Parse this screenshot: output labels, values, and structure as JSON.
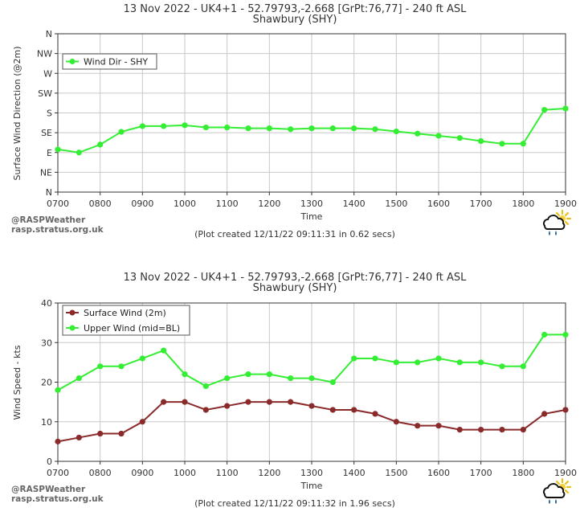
{
  "branding": {
    "line1": "@RASPWeather",
    "line2": "rasp.stratus.org.uk",
    "logo_icon": "cloud-sun-rain-icon"
  },
  "chart_data": [
    {
      "type": "line",
      "title": "13 Nov 2022 - UK4+1 - 52.79793,-2.668 [GrPt:76,77]  - 240 ft ASL",
      "subtitle": "Shawbury (SHY)",
      "xlabel": "Time",
      "ylabel": "Surface Wind Direction (@2m)",
      "footer": "(Plot created 12/11/22 09:11:31 in 0.62 secs)",
      "x_ticks": [
        "0700",
        "0800",
        "0900",
        "1000",
        "1100",
        "1200",
        "1300",
        "1400",
        "1500",
        "1600",
        "1700",
        "1800",
        "1900"
      ],
      "x": [
        700,
        750,
        800,
        850,
        900,
        950,
        1000,
        1050,
        1100,
        1150,
        1200,
        1250,
        1300,
        1350,
        1400,
        1450,
        1500,
        1550,
        1600,
        1650,
        1700,
        1750,
        1800,
        1850,
        1900
      ],
      "xlim": [
        700,
        1900
      ],
      "y_tick_labels": [
        "N",
        "NE",
        "E",
        "SE",
        "S",
        "SW",
        "W",
        "NW",
        "N"
      ],
      "y_tick_values": [
        0,
        45,
        90,
        135,
        180,
        225,
        270,
        315,
        360
      ],
      "ylim": [
        0,
        360
      ],
      "grid": true,
      "legend_position": "top-left",
      "series": [
        {
          "name": "Wind Dir - SHY",
          "color": "#33ee33",
          "values": [
            97,
            90,
            108,
            137,
            150,
            150,
            152,
            147,
            147,
            145,
            145,
            143,
            145,
            145,
            145,
            143,
            138,
            133,
            128,
            123,
            116,
            110,
            110,
            187,
            190
          ]
        }
      ]
    },
    {
      "type": "line",
      "title": "13 Nov 2022 - UK4+1 - 52.79793,-2.668 [GrPt:76,77]  - 240 ft ASL",
      "subtitle": "Shawbury (SHY)",
      "xlabel": "Time",
      "ylabel": "Wind Speed - kts",
      "footer": "(Plot created 12/11/22 09:11:32 in 1.96 secs)",
      "x_ticks": [
        "0700",
        "0800",
        "0900",
        "1000",
        "1100",
        "1200",
        "1300",
        "1400",
        "1500",
        "1600",
        "1700",
        "1800",
        "1900"
      ],
      "x": [
        700,
        750,
        800,
        850,
        900,
        950,
        1000,
        1050,
        1100,
        1150,
        1200,
        1250,
        1300,
        1350,
        1400,
        1450,
        1500,
        1550,
        1600,
        1650,
        1700,
        1750,
        1800,
        1850,
        1900
      ],
      "xlim": [
        700,
        1900
      ],
      "y_tick_labels": [
        "0",
        "10",
        "20",
        "30",
        "40"
      ],
      "y_tick_values": [
        0,
        10,
        20,
        30,
        40
      ],
      "ylim": [
        0,
        40
      ],
      "grid": true,
      "legend_position": "top-left",
      "series": [
        {
          "name": "Surface Wind (2m)",
          "color": "#8b2a2a",
          "values": [
            5,
            6,
            7,
            7,
            10,
            15,
            15,
            13,
            14,
            15,
            15,
            15,
            14,
            13,
            13,
            12,
            10,
            9,
            9,
            8,
            8,
            8,
            8,
            12,
            13
          ]
        },
        {
          "name": "Upper Wind (mid=BL)",
          "color": "#33ee33",
          "values": [
            18,
            21,
            24,
            24,
            26,
            28,
            22,
            19,
            21,
            22,
            22,
            21,
            21,
            20,
            26,
            26,
            25,
            25,
            26,
            25,
            25,
            24,
            24,
            32,
            32
          ]
        }
      ]
    }
  ]
}
